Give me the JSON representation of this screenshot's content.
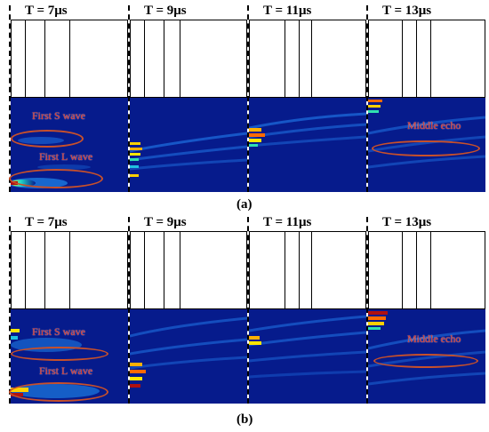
{
  "captions": {
    "a": "(a)",
    "b": "(b)"
  },
  "row_a": [
    {
      "title": "T = 7μs"
    },
    {
      "title": "T = 9μs"
    },
    {
      "title": "T = 11μs"
    },
    {
      "title": "T = 13μs"
    }
  ],
  "row_b": [
    {
      "title": "T = 7μs"
    },
    {
      "title": "T = 9μs"
    },
    {
      "title": "T = 11μs"
    },
    {
      "title": "T = 13μs"
    }
  ],
  "annotations": {
    "first_s_wave": "First S wave",
    "first_l_wave": "First L wave",
    "middle_echo": "Middle echo"
  },
  "colors": {
    "field_background": "#061b8c",
    "annotation_text": "#d6342a",
    "annotation_ellipse": "#c8502a"
  }
}
